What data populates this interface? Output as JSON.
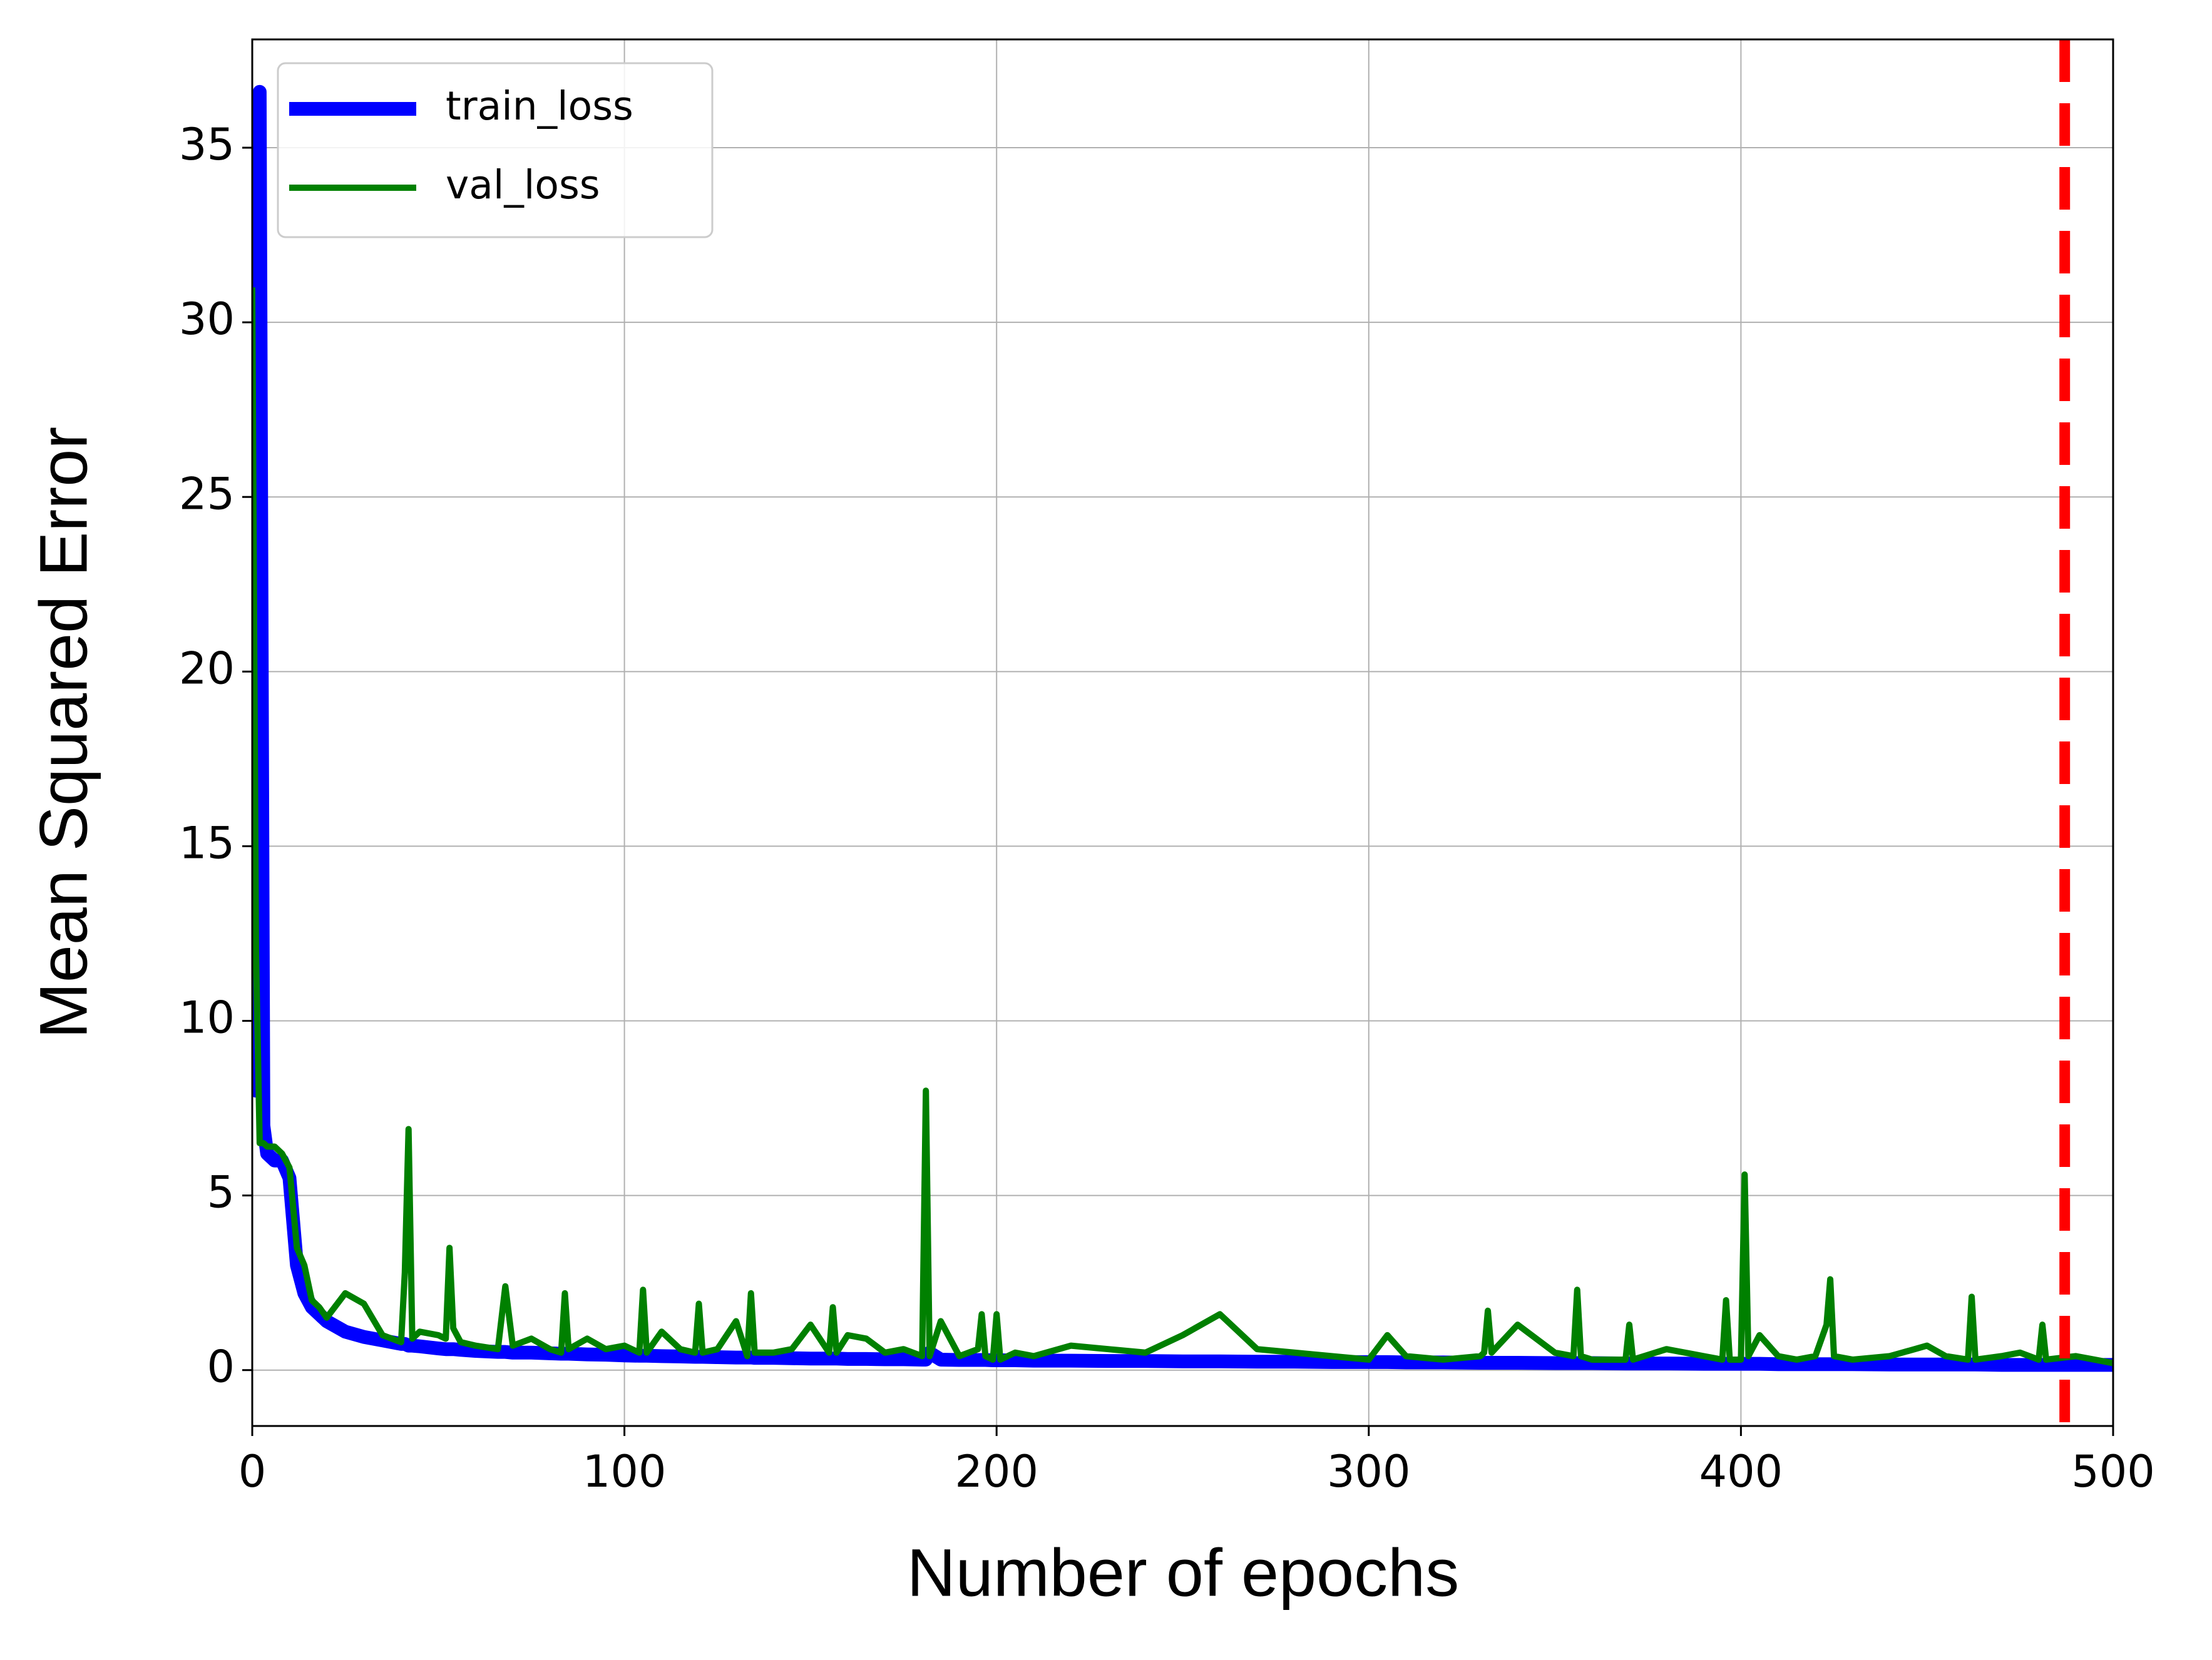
{
  "chart_data": {
    "type": "line",
    "x_label": "Number of epochs",
    "y_label": "Mean Squared Error",
    "x": [
      0,
      1,
      2,
      3,
      4,
      6,
      8,
      10,
      12,
      14,
      16,
      18,
      20,
      25,
      30,
      35,
      40,
      41,
      42,
      43,
      45,
      50,
      52,
      53,
      54,
      56,
      60,
      66,
      68,
      70,
      75,
      80,
      83,
      84,
      85,
      90,
      95,
      100,
      104,
      105,
      106,
      110,
      115,
      119,
      120,
      121,
      125,
      130,
      133,
      134,
      135,
      140,
      145,
      150,
      155,
      156,
      157,
      160,
      165,
      170,
      175,
      180,
      181,
      182,
      185,
      190,
      195,
      196,
      197,
      199,
      200,
      201,
      205,
      210,
      220,
      230,
      240,
      250,
      260,
      270,
      280,
      290,
      300,
      305,
      310,
      320,
      330,
      331,
      332,
      333,
      340,
      350,
      355,
      356,
      357,
      360,
      369,
      370,
      371,
      380,
      390,
      395,
      396,
      397,
      400,
      401,
      402,
      405,
      410,
      415,
      420,
      423,
      424,
      425,
      430,
      440,
      450,
      455,
      461,
      462,
      463,
      470,
      475,
      480,
      481,
      482,
      490,
      495,
      500
    ],
    "series": [
      {
        "name": "train_loss",
        "color": "#0000ff",
        "values": [
          10,
          8,
          36.6,
          7,
          6.2,
          6.0,
          6.0,
          5.5,
          3.0,
          2.2,
          1.8,
          1.6,
          1.4,
          1.1,
          0.95,
          0.85,
          0.75,
          0.75,
          0.7,
          0.7,
          0.68,
          0.62,
          0.6,
          0.6,
          0.6,
          0.58,
          0.55,
          0.52,
          0.52,
          0.5,
          0.5,
          0.48,
          0.47,
          0.47,
          0.47,
          0.45,
          0.44,
          0.42,
          0.41,
          0.41,
          0.41,
          0.4,
          0.39,
          0.38,
          0.38,
          0.38,
          0.37,
          0.36,
          0.36,
          0.36,
          0.35,
          0.35,
          0.34,
          0.33,
          0.33,
          0.33,
          0.33,
          0.32,
          0.32,
          0.31,
          0.31,
          0.3,
          0.3,
          0.5,
          0.3,
          0.29,
          0.29,
          0.29,
          0.29,
          0.28,
          0.28,
          0.28,
          0.28,
          0.27,
          0.27,
          0.26,
          0.26,
          0.25,
          0.25,
          0.24,
          0.24,
          0.23,
          0.23,
          0.23,
          0.22,
          0.22,
          0.21,
          0.21,
          0.21,
          0.21,
          0.21,
          0.2,
          0.2,
          0.2,
          0.2,
          0.2,
          0.19,
          0.19,
          0.19,
          0.19,
          0.18,
          0.18,
          0.18,
          0.18,
          0.18,
          0.18,
          0.18,
          0.18,
          0.17,
          0.17,
          0.17,
          0.17,
          0.17,
          0.17,
          0.17,
          0.16,
          0.16,
          0.16,
          0.16,
          0.16,
          0.16,
          0.15,
          0.15,
          0.15,
          0.15,
          0.15,
          0.15,
          0.15,
          0.15
        ]
      },
      {
        "name": "val_loss",
        "color": "#008000",
        "values": [
          31,
          12,
          6.5,
          6.5,
          6.4,
          6.4,
          6.2,
          5.8,
          3.5,
          3.0,
          2.0,
          1.8,
          1.5,
          2.2,
          1.9,
          1.0,
          0.8,
          2.8,
          6.9,
          0.9,
          1.1,
          1.0,
          0.9,
          3.5,
          1.2,
          0.8,
          0.7,
          0.6,
          2.4,
          0.7,
          0.9,
          0.6,
          0.5,
          2.2,
          0.6,
          0.9,
          0.6,
          0.7,
          0.5,
          2.3,
          0.5,
          1.1,
          0.6,
          0.5,
          1.9,
          0.5,
          0.6,
          1.4,
          0.4,
          2.2,
          0.5,
          0.5,
          0.6,
          1.3,
          0.5,
          1.8,
          0.5,
          1.0,
          0.9,
          0.5,
          0.6,
          0.4,
          8.0,
          0.4,
          1.4,
          0.4,
          0.6,
          1.6,
          0.4,
          0.3,
          1.6,
          0.3,
          0.5,
          0.4,
          0.7,
          0.6,
          0.5,
          1.0,
          1.6,
          0.6,
          0.5,
          0.4,
          0.3,
          1.0,
          0.4,
          0.3,
          0.4,
          0.5,
          1.7,
          0.5,
          1.3,
          0.5,
          0.4,
          2.3,
          0.4,
          0.3,
          0.3,
          1.3,
          0.3,
          0.6,
          0.4,
          0.3,
          2.0,
          0.3,
          0.3,
          5.6,
          0.4,
          1.0,
          0.4,
          0.3,
          0.4,
          1.3,
          2.6,
          0.4,
          0.3,
          0.4,
          0.7,
          0.4,
          0.3,
          2.1,
          0.3,
          0.4,
          0.5,
          0.3,
          1.3,
          0.3,
          0.4,
          0.3,
          0.2
        ]
      }
    ],
    "vline_x": 487,
    "vline_color": "#ff0000",
    "xlim": [
      0,
      500
    ],
    "xticks": [
      0,
      100,
      200,
      300,
      400,
      500
    ],
    "ylim": [
      -1.6,
      38.1
    ],
    "yticks": [
      0,
      5,
      10,
      15,
      20,
      25,
      30,
      35
    ],
    "grid": true,
    "legend": "upper left"
  }
}
